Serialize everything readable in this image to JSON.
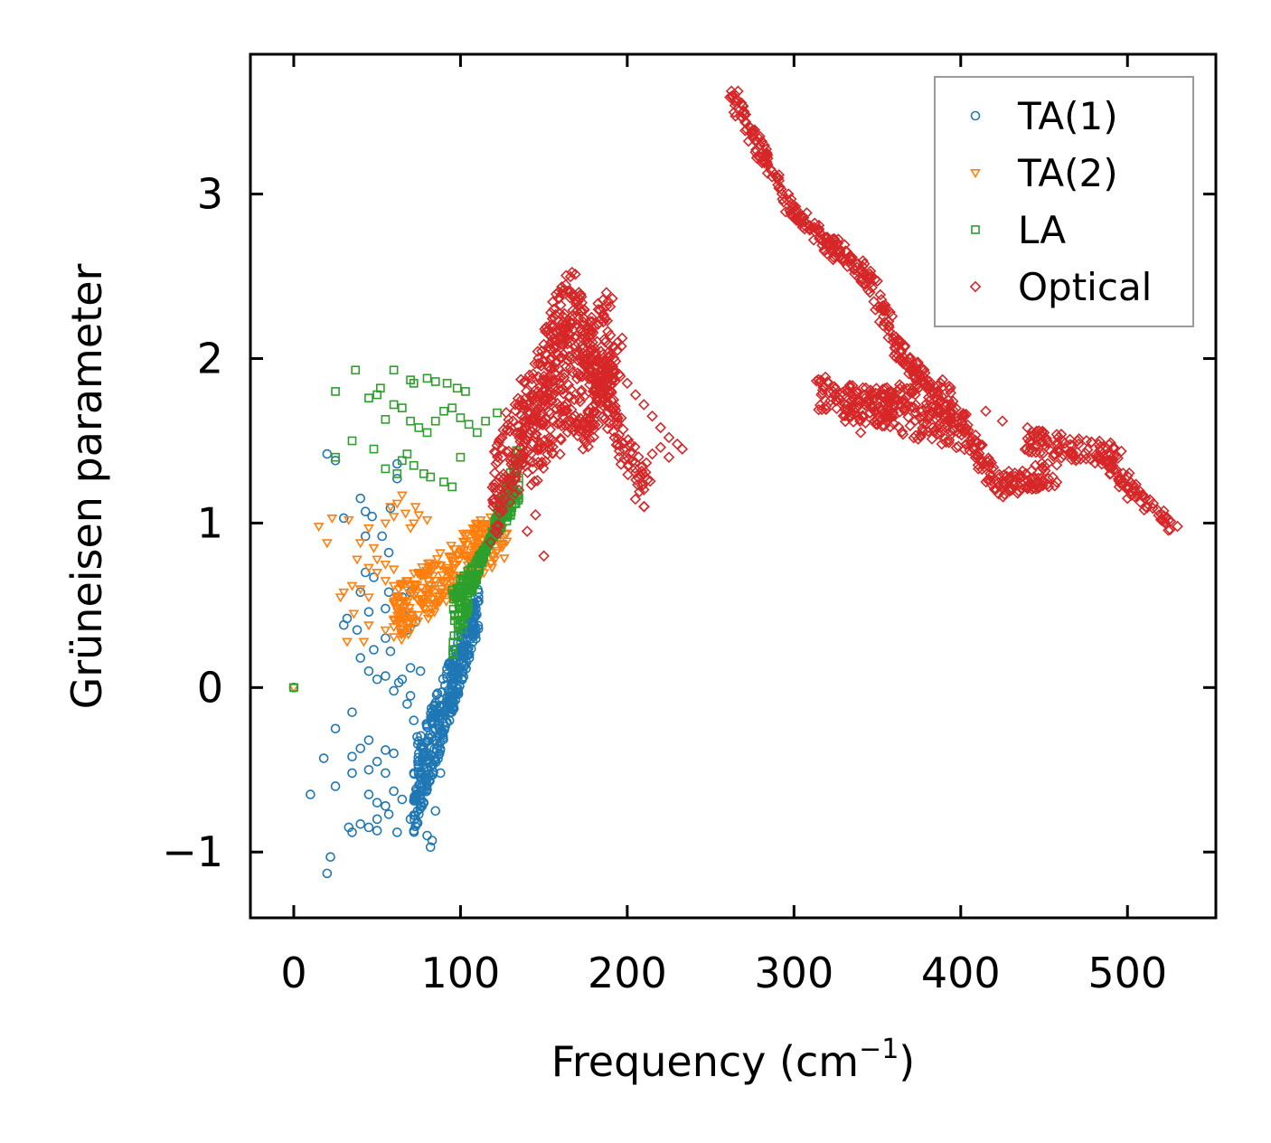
{
  "chart_data": {
    "type": "scatter",
    "title": "",
    "xlabel": "Frequency (cm",
    "xlabel_sup": "−1",
    "xlabel_close": ")",
    "ylabel": "Grüneisen parameter",
    "xlim": [
      -26,
      553
    ],
    "ylim": [
      -1.4,
      3.85
    ],
    "xticks": [
      0,
      100,
      200,
      300,
      400,
      500
    ],
    "xtick_labels": [
      "0",
      "100",
      "200",
      "300",
      "400",
      "500"
    ],
    "yticks": [
      -1,
      0,
      1,
      2,
      3
    ],
    "ytick_labels": [
      "−1",
      "0",
      "1",
      "2",
      "3"
    ],
    "legend_position": "top-right",
    "series": [
      {
        "name": "TA(1)",
        "marker": "circle",
        "color": "#1f77b4",
        "points": [
          [
            0,
            0
          ],
          [
            20,
            1.42
          ],
          [
            25,
            1.38
          ],
          [
            30,
            1.03
          ],
          [
            40,
            1.15
          ],
          [
            43,
            1.07
          ],
          [
            47,
            1.04
          ],
          [
            62,
            1.36
          ],
          [
            62,
            1.27
          ],
          [
            58,
            1.09
          ],
          [
            53,
            0.92
          ],
          [
            43,
            0.92
          ],
          [
            57,
            0.82
          ],
          [
            43,
            0.7
          ],
          [
            48,
            0.67
          ],
          [
            40,
            0.58
          ],
          [
            57,
            0.58
          ],
          [
            65,
            0.55
          ],
          [
            70,
            0.58
          ],
          [
            55,
            0.48
          ],
          [
            45,
            0.46
          ],
          [
            32,
            0.42
          ],
          [
            30,
            0.38
          ],
          [
            38,
            0.35
          ],
          [
            55,
            0.3
          ],
          [
            48,
            0.23
          ],
          [
            58,
            0.22
          ],
          [
            40,
            0.18
          ],
          [
            45,
            0.1
          ],
          [
            50,
            0.05
          ],
          [
            55,
            0.07
          ],
          [
            65,
            0.05
          ],
          [
            63,
            0.03
          ],
          [
            60,
            -0.02
          ],
          [
            70,
            -0.05
          ],
          [
            35,
            -0.15
          ],
          [
            25,
            -0.25
          ],
          [
            45,
            -0.32
          ],
          [
            40,
            -0.37
          ],
          [
            55,
            -0.38
          ],
          [
            60,
            -0.4
          ],
          [
            35,
            -0.42
          ],
          [
            18,
            -0.43
          ],
          [
            50,
            -0.45
          ],
          [
            45,
            -0.5
          ],
          [
            55,
            -0.52
          ],
          [
            35,
            -0.52
          ],
          [
            25,
            -0.6
          ],
          [
            10,
            -0.65
          ],
          [
            45,
            -0.65
          ],
          [
            50,
            -0.7
          ],
          [
            55,
            -0.72
          ],
          [
            60,
            -0.63
          ],
          [
            65,
            -0.68
          ],
          [
            57,
            -0.77
          ],
          [
            75,
            -0.77
          ],
          [
            50,
            -0.8
          ],
          [
            70,
            -0.8
          ],
          [
            33,
            -0.85
          ],
          [
            35,
            -0.88
          ],
          [
            40,
            -0.83
          ],
          [
            45,
            -0.85
          ],
          [
            50,
            -0.87
          ],
          [
            62,
            -0.88
          ],
          [
            72,
            -0.87
          ],
          [
            80,
            -0.9
          ],
          [
            83,
            -0.93
          ],
          [
            82,
            -0.97
          ],
          [
            22,
            -1.03
          ],
          [
            20,
            -1.13
          ],
          [
            75,
            -0.4
          ],
          [
            80,
            -0.62
          ],
          [
            78,
            -0.7
          ],
          [
            85,
            -0.75
          ],
          [
            88,
            -0.52
          ],
          [
            74,
            -0.3
          ],
          [
            68,
            -0.1
          ],
          [
            72,
            -0.2
          ],
          [
            76,
            0.1
          ],
          [
            70,
            0.12
          ],
          [
            73,
            0.4
          ],
          [
            68,
            0.35
          ],
          [
            65,
            0.45
          ]
        ],
        "band": {
          "x": [
            72,
            111
          ],
          "y_start": [
            -0.9,
            -0.4
          ],
          "y_end": [
            0.35,
            0.62
          ],
          "count": 360
        }
      },
      {
        "name": "TA(2)",
        "marker": "triangle",
        "color": "#ff7f0e",
        "points": [
          [
            0,
            0
          ],
          [
            15,
            0.98
          ],
          [
            20,
            0.88
          ],
          [
            23,
            1.03
          ],
          [
            33,
            1.02
          ],
          [
            40,
            0.88
          ],
          [
            48,
            0.85
          ],
          [
            45,
            0.97
          ],
          [
            58,
            1.1
          ],
          [
            62,
            1.12
          ],
          [
            65,
            1.17
          ],
          [
            67,
            1.06
          ],
          [
            60,
            1.04
          ],
          [
            55,
            1.0
          ],
          [
            70,
            0.97
          ],
          [
            73,
            1.1
          ],
          [
            75,
            1.05
          ],
          [
            80,
            1.02
          ],
          [
            72,
            1.0
          ],
          [
            45,
            0.73
          ],
          [
            50,
            0.7
          ],
          [
            60,
            0.72
          ],
          [
            68,
            0.65
          ],
          [
            60,
            0.62
          ],
          [
            40,
            0.6
          ],
          [
            30,
            0.58
          ],
          [
            28,
            0.55
          ],
          [
            36,
            0.45
          ],
          [
            45,
            0.38
          ],
          [
            55,
            0.35
          ],
          [
            60,
            0.37
          ],
          [
            42,
            0.28
          ],
          [
            32,
            0.28
          ],
          [
            63,
            0.45
          ],
          [
            68,
            0.52
          ],
          [
            45,
            0.55
          ],
          [
            55,
            0.65
          ],
          [
            35,
            0.62
          ],
          [
            38,
            0.78
          ],
          [
            50,
            0.78
          ],
          [
            55,
            0.75
          ]
        ],
        "band": {
          "x": [
            60,
            128
          ],
          "y_start": [
            0.25,
            0.6
          ],
          "y_end": [
            0.8,
            1.15
          ],
          "count": 300
        }
      },
      {
        "name": "LA",
        "marker": "square",
        "color": "#2ca02c",
        "points": [
          [
            0,
            0
          ],
          [
            25,
            1.8
          ],
          [
            37,
            1.93
          ],
          [
            45,
            1.76
          ],
          [
            50,
            1.78
          ],
          [
            52,
            1.82
          ],
          [
            60,
            1.93
          ],
          [
            70,
            1.87
          ],
          [
            80,
            1.88
          ],
          [
            72,
            1.85
          ],
          [
            85,
            1.86
          ],
          [
            92,
            1.85
          ],
          [
            98,
            1.82
          ],
          [
            103,
            1.8
          ],
          [
            60,
            1.72
          ],
          [
            65,
            1.7
          ],
          [
            70,
            1.62
          ],
          [
            75,
            1.58
          ],
          [
            80,
            1.55
          ],
          [
            85,
            1.62
          ],
          [
            90,
            1.68
          ],
          [
            95,
            1.7
          ],
          [
            100,
            1.64
          ],
          [
            105,
            1.6
          ],
          [
            55,
            1.63
          ],
          [
            35,
            1.5
          ],
          [
            25,
            1.4
          ],
          [
            48,
            1.45
          ],
          [
            55,
            1.33
          ],
          [
            62,
            1.3
          ],
          [
            65,
            1.38
          ],
          [
            68,
            1.42
          ],
          [
            72,
            1.35
          ],
          [
            78,
            1.3
          ],
          [
            82,
            1.28
          ],
          [
            90,
            1.25
          ],
          [
            95,
            1.22
          ],
          [
            100,
            1.4
          ],
          [
            110,
            1.55
          ],
          [
            115,
            1.62
          ],
          [
            122,
            1.67
          ]
        ],
        "band": {
          "x": [
            95,
            135
          ],
          "y_start": [
            0.6,
            0.15
          ],
          "y_end": [
            1.1,
            1.5
          ],
          "count": 320
        }
      },
      {
        "name": "Optical",
        "marker": "diamond",
        "color": "#d62728",
        "points": [
          [
            210,
            1.1
          ],
          [
            215,
            1.42
          ],
          [
            220,
            1.46
          ],
          [
            225,
            1.4
          ],
          [
            230,
            1.48
          ],
          [
            233,
            1.45
          ],
          [
            200,
            1.85
          ],
          [
            205,
            1.78
          ],
          [
            210,
            1.72
          ],
          [
            215,
            1.65
          ],
          [
            220,
            1.58
          ],
          [
            225,
            1.52
          ],
          [
            150,
            0.8
          ],
          [
            140,
            0.95
          ],
          [
            145,
            1.05
          ],
          [
            135,
            1.2
          ],
          [
            340,
            1.55
          ],
          [
            350,
            1.6
          ],
          [
            360,
            1.65
          ],
          [
            415,
            1.68
          ],
          [
            425,
            1.62
          ],
          [
            440,
            1.58
          ],
          [
            450,
            1.55
          ],
          [
            530,
            0.98
          ],
          [
            520,
            1.02
          ],
          [
            510,
            1.08
          ],
          [
            500,
            1.15
          ],
          [
            495,
            1.22
          ],
          [
            490,
            1.3
          ],
          [
            485,
            1.38
          ]
        ],
        "segments": [
          {
            "from": [
              118,
              1.1
            ],
            "to": [
              168,
              2.35
            ],
            "spread": 0.55,
            "count": 260
          },
          {
            "from": [
              140,
              1.45
            ],
            "to": [
              190,
              2.15
            ],
            "spread": 0.55,
            "count": 220
          },
          {
            "from": [
              168,
              2.3
            ],
            "to": [
              212,
              1.15
            ],
            "spread": 0.3,
            "count": 160
          },
          {
            "from": [
              172,
              1.5
            ],
            "to": [
              195,
              2.05
            ],
            "spread": 0.25,
            "count": 100
          },
          {
            "from": [
              262,
              3.62
            ],
            "to": [
              300,
              2.88
            ],
            "spread": 0.1,
            "count": 90
          },
          {
            "from": [
              300,
              2.88
            ],
            "to": [
              345,
              2.5
            ],
            "spread": 0.12,
            "count": 110
          },
          {
            "from": [
              345,
              2.5
            ],
            "to": [
              362,
              2.05
            ],
            "spread": 0.1,
            "count": 50
          },
          {
            "from": [
              362,
              2.05
            ],
            "to": [
              380,
              1.85
            ],
            "spread": 0.12,
            "count": 50
          },
          {
            "from": [
              315,
              1.8
            ],
            "to": [
              400,
              1.55
            ],
            "spread": 0.22,
            "count": 180
          },
          {
            "from": [
              330,
              1.7
            ],
            "to": [
              395,
              1.8
            ],
            "spread": 0.18,
            "count": 120
          },
          {
            "from": [
              395,
              1.7
            ],
            "to": [
              420,
              1.25
            ],
            "spread": 0.15,
            "count": 70
          },
          {
            "from": [
              420,
              1.22
            ],
            "to": [
              455,
              1.3
            ],
            "spread": 0.15,
            "count": 80
          },
          {
            "from": [
              440,
              1.5
            ],
            "to": [
              495,
              1.4
            ],
            "spread": 0.15,
            "count": 110
          },
          {
            "from": [
              490,
              1.35
            ],
            "to": [
              526,
              0.98
            ],
            "spread": 0.08,
            "count": 60
          }
        ]
      }
    ]
  }
}
